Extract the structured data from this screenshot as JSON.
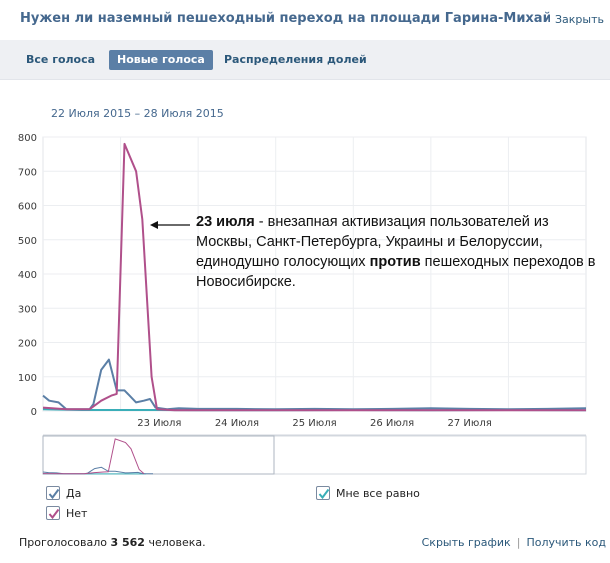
{
  "header": {
    "title": "Нужен ли наземный пешеходный переход на площади Гарина-Михайловс...",
    "close_label": "Закрыть"
  },
  "tabs": [
    {
      "label": "Все голоса",
      "active": false
    },
    {
      "label": "Новые голоса",
      "active": true
    },
    {
      "label": "Распределения долей",
      "active": false
    }
  ],
  "date_range": "22 Июля 2015 – 28 Июля 2015",
  "annotation": {
    "date": "23 июля",
    "text_part1": " - внезапная активизация пользователей из Москвы, Санкт-Петербурга, Украины и Белоруссии, единодушно голосующих ",
    "emphasis": "против",
    "text_part2": " пешеходных переходов в Новосибирске."
  },
  "legend": [
    {
      "label": "Да",
      "color": "#5b7fa6",
      "checked": true
    },
    {
      "label": "Нет",
      "color": "#b0508b",
      "checked": true
    },
    {
      "label": "Мне все равно",
      "color": "#3aaeb8",
      "checked": true
    }
  ],
  "footer": {
    "voted_prefix": "Проголосовало ",
    "voted_count": "3 562",
    "voted_suffix": " человека.",
    "hide_chart": "Скрыть график",
    "separator": "|",
    "get_code": "Получить код"
  },
  "chart_data": {
    "type": "line",
    "ylim": [
      0,
      800
    ],
    "yticks": [
      0,
      100,
      200,
      300,
      400,
      500,
      600,
      700,
      800
    ],
    "x_range_days": [
      22.0,
      29.0
    ],
    "xticks": [
      {
        "label": "23 Июля",
        "day": 23
      },
      {
        "label": "24 Июля",
        "day": 24
      },
      {
        "label": "25 Июля",
        "day": 25
      },
      {
        "label": "26 Июля",
        "day": 26
      },
      {
        "label": "27 Июля",
        "day": 27
      }
    ],
    "series": [
      {
        "name": "Да",
        "color": "#5b7fa6",
        "points": [
          [
            22.0,
            45
          ],
          [
            22.08,
            30
          ],
          [
            22.2,
            25
          ],
          [
            22.3,
            5
          ],
          [
            22.5,
            5
          ],
          [
            22.6,
            5
          ],
          [
            22.65,
            20
          ],
          [
            22.75,
            120
          ],
          [
            22.85,
            150
          ],
          [
            22.95,
            60
          ],
          [
            23.05,
            60
          ],
          [
            23.2,
            25
          ],
          [
            23.3,
            30
          ],
          [
            23.38,
            35
          ],
          [
            23.45,
            10
          ],
          [
            23.6,
            5
          ],
          [
            23.75,
            8
          ],
          [
            24.0,
            6
          ],
          [
            24.5,
            6
          ],
          [
            25.0,
            5
          ],
          [
            25.5,
            6
          ],
          [
            26.0,
            5
          ],
          [
            26.5,
            6
          ],
          [
            27.0,
            8
          ],
          [
            27.5,
            6
          ],
          [
            28.0,
            5
          ],
          [
            28.5,
            6
          ],
          [
            29.0,
            8
          ]
        ]
      },
      {
        "name": "Нет",
        "color": "#b0508b",
        "points": [
          [
            22.0,
            10
          ],
          [
            22.3,
            5
          ],
          [
            22.6,
            5
          ],
          [
            22.75,
            30
          ],
          [
            22.88,
            45
          ],
          [
            22.95,
            50
          ],
          [
            23.05,
            780
          ],
          [
            23.2,
            700
          ],
          [
            23.28,
            560
          ],
          [
            23.4,
            100
          ],
          [
            23.47,
            5
          ],
          [
            23.7,
            2
          ],
          [
            24.0,
            2
          ],
          [
            25.0,
            2
          ],
          [
            26.0,
            2
          ],
          [
            27.0,
            2
          ],
          [
            28.0,
            2
          ],
          [
            29.0,
            2
          ]
        ]
      },
      {
        "name": "Мне все равно",
        "color": "#3aaeb8",
        "points": [
          [
            22.0,
            5
          ],
          [
            22.5,
            3
          ],
          [
            23.0,
            3
          ],
          [
            23.5,
            3
          ],
          [
            24.0,
            2
          ],
          [
            25.0,
            2
          ],
          [
            26.0,
            3
          ],
          [
            27.0,
            2
          ],
          [
            28.0,
            3
          ],
          [
            29.0,
            2
          ]
        ]
      }
    ]
  }
}
